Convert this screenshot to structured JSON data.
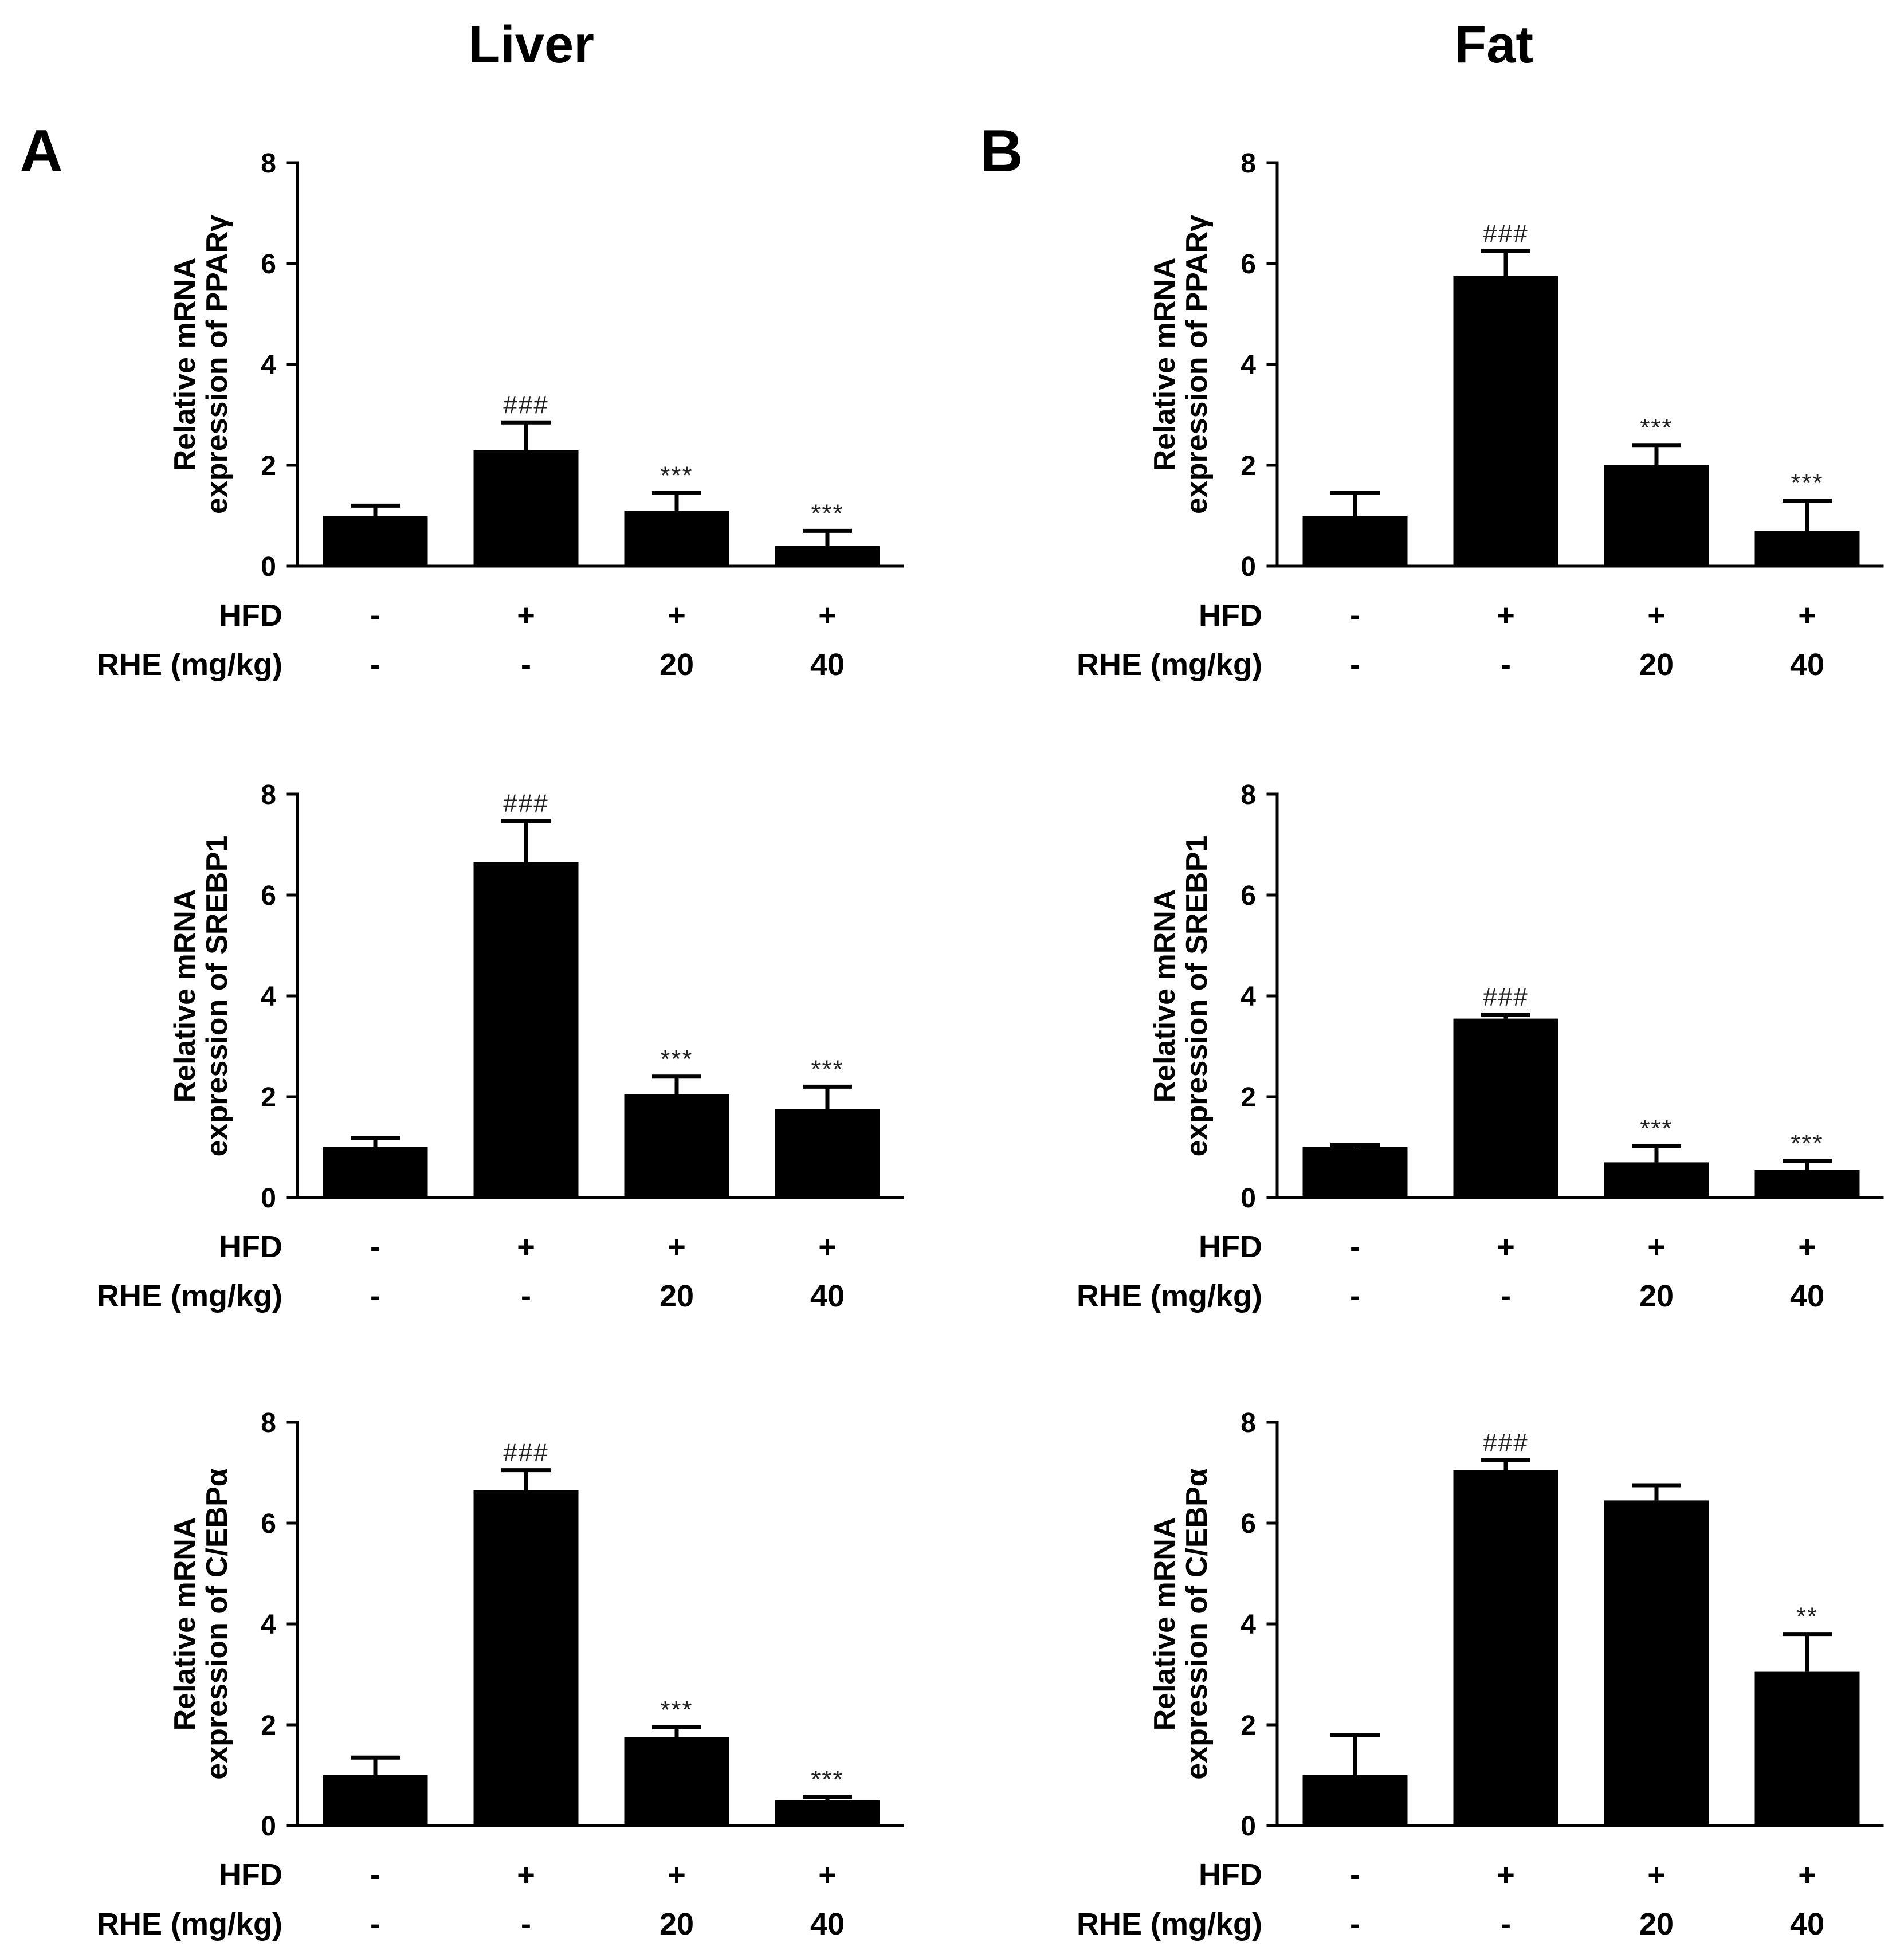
{
  "figure": {
    "columns": [
      {
        "title": "Liver",
        "panel": "A"
      },
      {
        "title": "Fat",
        "panel": "B"
      }
    ]
  },
  "colors": {
    "bar": "#000000",
    "axis": "#000000",
    "annotation": "#222222",
    "background": "#ffffff"
  },
  "chart_data": [
    {
      "type": "bar",
      "ylabel": [
        "Relative mRNA",
        "expression of PPARγ"
      ],
      "ylim": [
        0,
        8
      ],
      "yticks": [
        0,
        2,
        4,
        6,
        8
      ],
      "conditions": [
        {
          "label": "HFD",
          "values": [
            "-",
            "+",
            "+",
            "+"
          ]
        },
        {
          "label": "RHE (mg/kg)",
          "values": [
            "-",
            "-",
            "20",
            "40"
          ]
        }
      ],
      "values": [
        1.0,
        2.3,
        1.1,
        0.4
      ],
      "errors": [
        0.2,
        0.55,
        0.35,
        0.3
      ],
      "annotations": [
        null,
        "###",
        "***",
        "***"
      ]
    },
    {
      "type": "bar",
      "ylabel": [
        "Relative mRNA",
        "expression of SREBP1"
      ],
      "ylim": [
        0,
        8
      ],
      "yticks": [
        0,
        2,
        4,
        6,
        8
      ],
      "conditions": [
        {
          "label": "HFD",
          "values": [
            "-",
            "+",
            "+",
            "+"
          ]
        },
        {
          "label": "RHE (mg/kg)",
          "values": [
            "-",
            "-",
            "20",
            "40"
          ]
        }
      ],
      "values": [
        1.0,
        6.65,
        2.05,
        1.75
      ],
      "errors": [
        0.18,
        0.82,
        0.35,
        0.45
      ],
      "annotations": [
        null,
        "###",
        "***",
        "***"
      ]
    },
    {
      "type": "bar",
      "ylabel": [
        "Relative mRNA",
        "expression of C/EBPα"
      ],
      "ylim": [
        0,
        8
      ],
      "yticks": [
        0,
        2,
        4,
        6,
        8
      ],
      "conditions": [
        {
          "label": "HFD",
          "values": [
            "-",
            "+",
            "+",
            "+"
          ]
        },
        {
          "label": "RHE (mg/kg)",
          "values": [
            "-",
            "-",
            "20",
            "40"
          ]
        }
      ],
      "values": [
        1.0,
        6.65,
        1.75,
        0.5
      ],
      "errors": [
        0.35,
        0.4,
        0.2,
        0.07
      ],
      "annotations": [
        null,
        "###",
        "***",
        "***"
      ]
    },
    {
      "type": "bar",
      "ylabel": [
        "Relative mRNA",
        "expression of PPARγ"
      ],
      "ylim": [
        0,
        8
      ],
      "yticks": [
        0,
        2,
        4,
        6,
        8
      ],
      "conditions": [
        {
          "label": "HFD",
          "values": [
            "-",
            "+",
            "+",
            "+"
          ]
        },
        {
          "label": "RHE (mg/kg)",
          "values": [
            "-",
            "-",
            "20",
            "40"
          ]
        }
      ],
      "values": [
        1.0,
        5.75,
        2.0,
        0.7
      ],
      "errors": [
        0.45,
        0.5,
        0.4,
        0.6
      ],
      "annotations": [
        null,
        "###",
        "***",
        "***"
      ]
    },
    {
      "type": "bar",
      "ylabel": [
        "Relative mRNA",
        "expression of SREBP1"
      ],
      "ylim": [
        0,
        8
      ],
      "yticks": [
        0,
        2,
        4,
        6,
        8
      ],
      "conditions": [
        {
          "label": "HFD",
          "values": [
            "-",
            "+",
            "+",
            "+"
          ]
        },
        {
          "label": "RHE (mg/kg)",
          "values": [
            "-",
            "-",
            "20",
            "40"
          ]
        }
      ],
      "values": [
        1.0,
        3.55,
        0.7,
        0.55
      ],
      "errors": [
        0.05,
        0.08,
        0.32,
        0.18
      ],
      "annotations": [
        null,
        "###",
        "***",
        "***"
      ]
    },
    {
      "type": "bar",
      "ylabel": [
        "Relative mRNA",
        "expression of C/EBPα"
      ],
      "ylim": [
        0,
        8
      ],
      "yticks": [
        0,
        2,
        4,
        6,
        8
      ],
      "conditions": [
        {
          "label": "HFD",
          "values": [
            "-",
            "+",
            "+",
            "+"
          ]
        },
        {
          "label": "RHE (mg/kg)",
          "values": [
            "-",
            "-",
            "20",
            "40"
          ]
        }
      ],
      "values": [
        1.0,
        7.05,
        6.45,
        3.05
      ],
      "errors": [
        0.8,
        0.2,
        0.3,
        0.75
      ],
      "annotations": [
        null,
        "###",
        null,
        "**"
      ]
    }
  ]
}
